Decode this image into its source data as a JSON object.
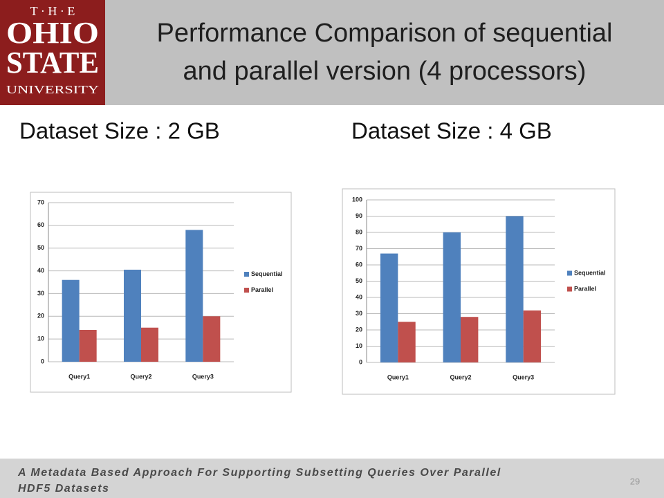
{
  "header": {
    "logo": [
      "T · H · E",
      "OHIO",
      "STATE",
      "UNIVERSITY"
    ],
    "title": [
      "Performance Comparison of sequential",
      "and parallel version (4 processors)"
    ]
  },
  "captions": [
    "Dataset Size : 2 GB",
    "Dataset Size : 4 GB"
  ],
  "chart_data": [
    {
      "type": "bar",
      "categories": [
        "Query1",
        "Query2",
        "Query3"
      ],
      "series": [
        {
          "name": "Sequential",
          "color": "#4f81bd",
          "values": [
            36,
            40.5,
            58
          ]
        },
        {
          "name": "Parallel",
          "color": "#c0504d",
          "values": [
            14,
            15,
            20
          ]
        }
      ],
      "ylim": [
        0,
        70
      ],
      "yticks": [
        0,
        10,
        20,
        30,
        40,
        50,
        60,
        70
      ],
      "grid": true,
      "legend": "right"
    },
    {
      "type": "bar",
      "categories": [
        "Query1",
        "Query2",
        "Query3"
      ],
      "series": [
        {
          "name": "Sequential",
          "color": "#4f81bd",
          "values": [
            67,
            80,
            90
          ]
        },
        {
          "name": "Parallel",
          "color": "#c0504d",
          "values": [
            25,
            28,
            32
          ]
        }
      ],
      "ylim": [
        0,
        100
      ],
      "yticks": [
        0,
        10,
        20,
        30,
        40,
        50,
        60,
        70,
        80,
        90,
        100
      ],
      "grid": true,
      "legend": "right"
    }
  ],
  "footer": {
    "text": [
      "A Metadata Based Approach For Supporting Subsetting Queries Over Parallel",
      "HDF5 Datasets"
    ],
    "page_number": 29
  }
}
